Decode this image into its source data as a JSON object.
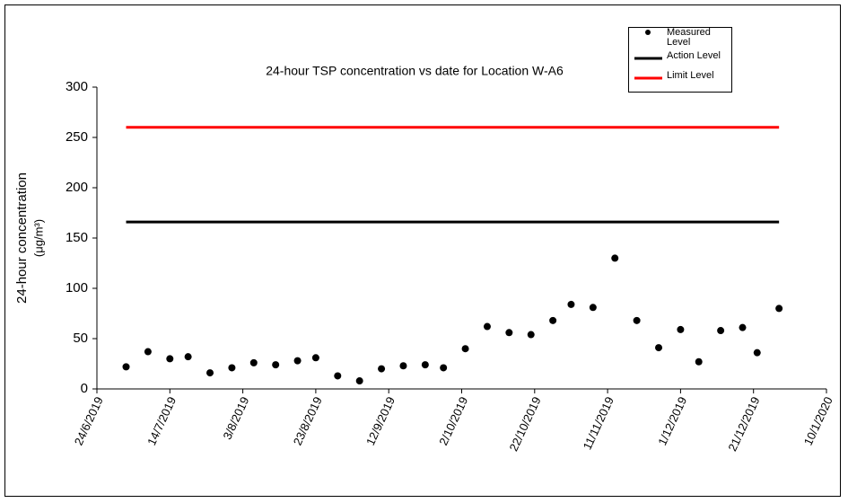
{
  "chart_data": {
    "type": "scatter",
    "title": "24-hour TSP concentration vs date for Location W-A6",
    "y_label": "24-hour concentration",
    "y_unit": "(μg/m³)",
    "xlim": [
      "2019-06-24",
      "2020-01-10"
    ],
    "xticks": [
      {
        "value": "2019-06-24",
        "label": "24/6/2019"
      },
      {
        "value": "2019-07-14",
        "label": "14/7/2019"
      },
      {
        "value": "2019-08-03",
        "label": "3/8/2019"
      },
      {
        "value": "2019-08-23",
        "label": "23/8/2019"
      },
      {
        "value": "2019-09-12",
        "label": "12/9/2019"
      },
      {
        "value": "2019-10-02",
        "label": "2/10/2019"
      },
      {
        "value": "2019-10-22",
        "label": "22/10/2019"
      },
      {
        "value": "2019-11-11",
        "label": "11/11/2019"
      },
      {
        "value": "2019-12-01",
        "label": "1/12/2019"
      },
      {
        "value": "2019-12-21",
        "label": "21/12/2019"
      },
      {
        "value": "2020-01-10",
        "label": "10/1/2020"
      }
    ],
    "ylim": [
      0,
      300
    ],
    "yticks": [
      0,
      50,
      100,
      150,
      200,
      250,
      300
    ],
    "grid": false,
    "series": [
      {
        "name": "Measured Level",
        "color": "#000000",
        "mark": "dot",
        "x": [
          "2019-07-02",
          "2019-07-08",
          "2019-07-14",
          "2019-07-19",
          "2019-07-25",
          "2019-07-31",
          "2019-08-06",
          "2019-08-12",
          "2019-08-18",
          "2019-08-23",
          "2019-08-29",
          "2019-09-04",
          "2019-09-10",
          "2019-09-16",
          "2019-09-22",
          "2019-09-27",
          "2019-10-03",
          "2019-10-09",
          "2019-10-15",
          "2019-10-21",
          "2019-10-27",
          "2019-11-01",
          "2019-11-07",
          "2019-11-13",
          "2019-11-19",
          "2019-11-25",
          "2019-12-01",
          "2019-12-06",
          "2019-12-12",
          "2019-12-18",
          "2019-12-22",
          "2019-12-28"
        ],
        "values": [
          22,
          37,
          30,
          32,
          16,
          21,
          26,
          24,
          28,
          31,
          13,
          8,
          20,
          23,
          24,
          21,
          40,
          62,
          56,
          54,
          68,
          84,
          81,
          130,
          68,
          41,
          59,
          27,
          58,
          61,
          36,
          80
        ]
      },
      {
        "name": "Action Level",
        "color": "#000000",
        "mark": "line",
        "x": [
          "2019-07-02",
          "2019-12-28"
        ],
        "values": [
          166,
          166
        ]
      },
      {
        "name": "Limit Level",
        "color": "#ff0000",
        "mark": "line",
        "x": [
          "2019-07-02",
          "2019-12-28"
        ],
        "values": [
          260,
          260
        ]
      }
    ]
  }
}
